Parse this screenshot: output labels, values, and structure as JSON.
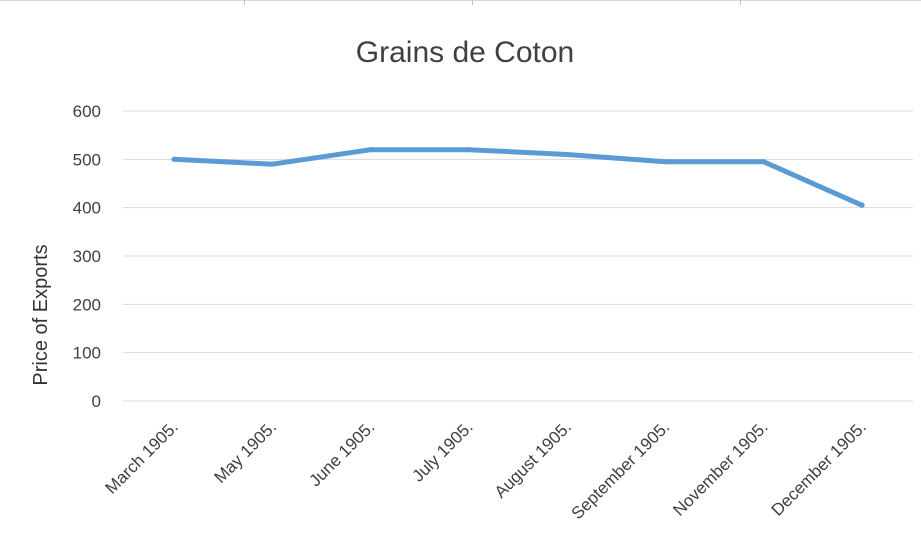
{
  "chart_data": {
    "type": "line",
    "title": "Grains de Coton",
    "xlabel": "",
    "ylabel": "Price of Exports",
    "categories": [
      "March 1905.",
      "May 1905.",
      "June 1905.",
      "July 1905.",
      "August 1905.",
      "September 1905.",
      "November 1905.",
      "December 1905."
    ],
    "series": [
      {
        "values": [
          500,
          490,
          520,
          520,
          510,
          495,
          495,
          405
        ],
        "color": "#5b9bd5"
      }
    ],
    "ylim": [
      0,
      600
    ],
    "yticks": [
      0,
      100,
      200,
      300,
      400,
      500,
      600
    ],
    "grid": true,
    "legend": "none"
  }
}
